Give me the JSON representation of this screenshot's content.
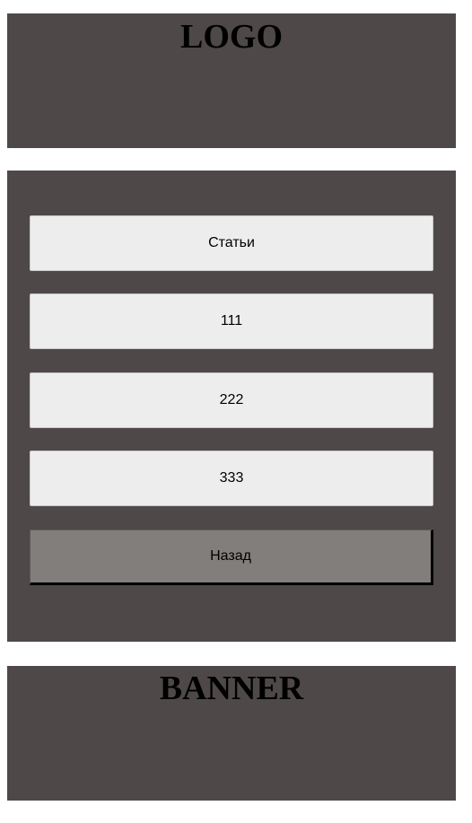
{
  "header": {
    "logo_text": "LOGO"
  },
  "menu": {
    "items": [
      {
        "label": "Статьи"
      },
      {
        "label": "111"
      },
      {
        "label": "222"
      },
      {
        "label": "333"
      }
    ],
    "back_label": "Назад"
  },
  "banner": {
    "text": "BANNER"
  },
  "colors": {
    "panel_bg": "#4e4948",
    "button_bg": "#ededed",
    "back_button_bg": "#827e7c"
  }
}
